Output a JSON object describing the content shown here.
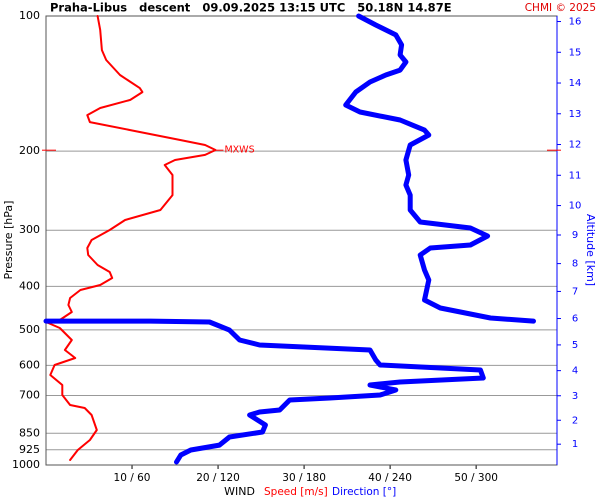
{
  "chart_data": {
    "type": "profile",
    "title": "Praha-Libus   descent   09.09.2025 13:15 UTC   50.18N 14.87E",
    "copyright": "CHMI © 2025",
    "y_label": "Pressure [hPa]",
    "y2_label": "Altitude [km]",
    "x_label": "WIND",
    "y_log": true,
    "grid": true,
    "ylim": [
      1000,
      100
    ],
    "yticks": [
      100,
      200,
      300,
      400,
      500,
      600,
      700,
      850,
      925,
      1000
    ],
    "y2ticks": [
      1,
      2,
      3,
      4,
      5,
      6,
      7,
      8,
      9,
      10,
      11,
      12,
      13,
      14,
      15,
      16
    ],
    "xlim": [
      0,
      59.4
    ],
    "x2lim": [
      0,
      356.4
    ],
    "xticks": [
      {
        "value": 10,
        "label": "10 / 60"
      },
      {
        "value": 20,
        "label": "20 / 120"
      },
      {
        "value": 30,
        "label": "30 / 180"
      },
      {
        "value": 40,
        "label": "40 / 240"
      },
      {
        "value": 50,
        "label": "50 / 300"
      }
    ],
    "max_wind": {
      "label": "MXWS",
      "pressure": 199,
      "speed": 19.7
    },
    "series": [
      {
        "name": "Speed [m/s]",
        "color": "#ff0000",
        "axis": "x",
        "pressure": [
          100,
          107.4,
          119.1,
          125.3,
          135.3,
          144.7,
          147.7,
          153.8,
          160.3,
          166.2,
          172.3,
          179.5,
          188.9,
          193.8,
          198.8,
          203.9,
          209.3,
          214.7,
          226.0,
          250.5,
          270.4,
          284.6,
          299.7,
          315.4,
          328.6,
          340.7,
          358.6,
          371.7,
          383.3,
          397.3,
          407.6,
          424.7,
          440.3,
          456.3,
          475.5,
          480.4,
          495.4,
          526.8,
          554.5,
          577.7,
          598.9,
          630.4,
          663.5,
          698.4,
          735.2,
          746.6,
          773.9,
          835.6,
          879.6,
          925.9,
          974.8
        ],
        "values": [
          6.0,
          6.3,
          6.5,
          7.0,
          8.6,
          10.9,
          11.2,
          9.8,
          6.3,
          4.8,
          5.1,
          9.8,
          15.6,
          18.5,
          19.7,
          18.5,
          15.0,
          13.8,
          14.7,
          14.7,
          13.3,
          9.2,
          7.4,
          5.3,
          4.8,
          4.9,
          6.0,
          7.4,
          7.7,
          6.3,
          4.0,
          2.8,
          2.6,
          3.0,
          1.6,
          0,
          1.6,
          3.0,
          2.2,
          3.4,
          1.0,
          0.5,
          1.9,
          1.9,
          2.8,
          4.5,
          5.3,
          5.9,
          5.1,
          3.7,
          2.8
        ]
      },
      {
        "name": "Direction [°]",
        "color": "#0000ff",
        "axis": "x2",
        "pressure": [
          100,
          104.7,
          110.2,
          116.0,
          122.1,
          126.6,
          132.0,
          135.3,
          140.3,
          147.7,
          157.8,
          163.6,
          170.5,
          179.5,
          184.1,
          193.8,
          209.3,
          226.0,
          237.9,
          250.5,
          270.4,
          287.6,
          296.6,
          309.0,
          323.6,
          328.6,
          340.7,
          367.9,
          387.3,
          429.1,
          447.0,
          470.6,
          478.0,
          null,
          478.0,
          478.0,
          478.0,
          480.4,
          500.6,
          526.8,
          540.5,
          554.5,
          583.6,
          598.9,
          614.4,
          640.2,
          653.5,
          663.5,
          680.8,
          698.4,
          709.3,
          716.6,
          754.3,
          762.1,
          773.9,
          814.6,
          844.4,
          866.4,
          902.8,
          925.9,
          950.0,
          984.8
        ],
        "values": [
          218,
          230,
          244,
          248,
          247,
          251,
          247,
          237,
          226,
          216,
          209,
          219,
          247,
          264,
          267,
          254,
          251,
          253,
          251,
          254,
          254,
          261,
          296,
          308,
          296,
          268,
          261,
          264,
          267,
          264,
          275,
          310,
          340,
          null,
          0,
          38,
          73,
          114,
          128,
          135,
          149,
          226,
          230,
          233,
          303,
          305,
          247,
          226,
          244,
          233,
          198,
          170,
          163,
          149,
          142,
          153,
          151,
          128,
          121,
          101,
          94,
          91
        ]
      }
    ]
  }
}
